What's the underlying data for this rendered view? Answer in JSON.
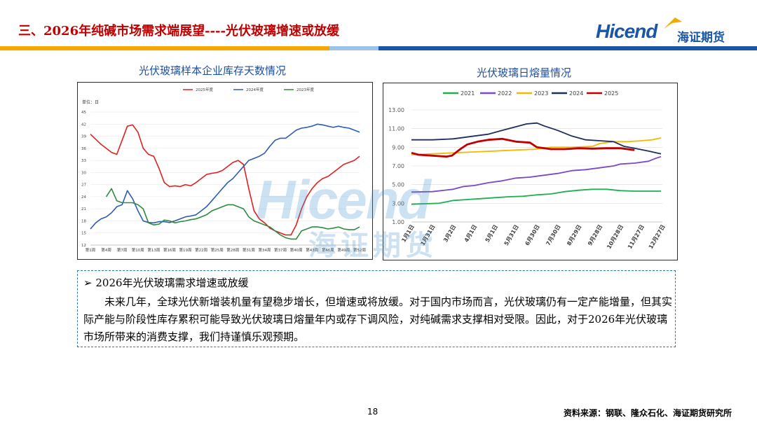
{
  "header": {
    "title": "三、2026年纯碱市场需求端展望----光伏玻璃增速或放缓",
    "logo_en": "Hicend",
    "logo_cn": "海证期货"
  },
  "left_chart_title": "光伏玻璃样本企业库存天数情况",
  "right_chart_title": "光伏玻璃日熔量情况",
  "watermark": {
    "en": "Hicend",
    "cn": "海证期货"
  },
  "chart_data": [
    {
      "type": "line",
      "unit_label": "单位：日",
      "ylim": [
        12,
        45
      ],
      "yticks": [
        12,
        15,
        18,
        21,
        24,
        27,
        30,
        33,
        36,
        39,
        42,
        45
      ],
      "x_weeks": [
        1,
        52
      ],
      "xtick_labels": [
        "第1周",
        "第4周",
        "第7周",
        "第10周",
        "第13周",
        "第16周",
        "第19周",
        "第22周",
        "第25周",
        "第28周",
        "第31周",
        "第34周",
        "第37周",
        "第40周",
        "第43周",
        "第46周",
        "第49周",
        "第52周"
      ],
      "legend_position": "top",
      "series": [
        {
          "name": "2025年度",
          "color": "#e02020",
          "values": [
            [
              1,
              39.5
            ],
            [
              3,
              37
            ],
            [
              5,
              35
            ],
            [
              6,
              34.5
            ],
            [
              7,
              38
            ],
            [
              8,
              41.5
            ],
            [
              9,
              41.8
            ],
            [
              10,
              40
            ],
            [
              11,
              36
            ],
            [
              12,
              34.5
            ],
            [
              13,
              34
            ],
            [
              14,
              31
            ],
            [
              15,
              27.5
            ],
            [
              16,
              26.5
            ],
            [
              17,
              26.7
            ],
            [
              18,
              26.5
            ],
            [
              19,
              27
            ],
            [
              20,
              26.7
            ],
            [
              21,
              27.5
            ],
            [
              22,
              28.5
            ],
            [
              23,
              29.5
            ],
            [
              24,
              29.8
            ],
            [
              25,
              30
            ],
            [
              26,
              30.5
            ],
            [
              27,
              31.5
            ],
            [
              28,
              32.5
            ],
            [
              29,
              33
            ],
            [
              30,
              32
            ],
            [
              31,
              26
            ],
            [
              32,
              20.5
            ],
            [
              33,
              18.5
            ],
            [
              34,
              17.5
            ],
            [
              35,
              16.2
            ],
            [
              36,
              15.5
            ],
            [
              37,
              15
            ],
            [
              38,
              14.5
            ],
            [
              39,
              14.5
            ],
            [
              40,
              17
            ],
            [
              41,
              21
            ],
            [
              42,
              24
            ],
            [
              43,
              26
            ],
            [
              44,
              27.5
            ],
            [
              45,
              28.5
            ],
            [
              46,
              29
            ],
            [
              47,
              30
            ],
            [
              48,
              31
            ],
            [
              49,
              32
            ],
            [
              50,
              32.5
            ],
            [
              51,
              33
            ],
            [
              52,
              34
            ]
          ]
        },
        {
          "name": "2024年度",
          "color": "#2e5bb6",
          "values": [
            [
              1,
              16
            ],
            [
              2,
              17.5
            ],
            [
              3,
              18.5
            ],
            [
              4,
              19
            ],
            [
              5,
              20
            ],
            [
              6,
              21.5
            ],
            [
              7,
              22
            ],
            [
              8,
              25.5
            ],
            [
              9,
              23.5
            ],
            [
              10,
              20.5
            ],
            [
              11,
              18
            ],
            [
              12,
              17.6
            ],
            [
              13,
              17.5
            ],
            [
              14,
              17.8
            ],
            [
              15,
              17.8
            ],
            [
              16,
              17.6
            ],
            [
              17,
              18
            ],
            [
              18,
              18.5
            ],
            [
              19,
              19
            ],
            [
              20,
              19.2
            ],
            [
              21,
              19.5
            ],
            [
              22,
              20.5
            ],
            [
              23,
              21.5
            ],
            [
              24,
              23
            ],
            [
              25,
              24.5
            ],
            [
              26,
              26
            ],
            [
              27,
              27.5
            ],
            [
              28,
              28.5
            ],
            [
              29,
              30
            ],
            [
              30,
              31.5
            ],
            [
              31,
              33
            ],
            [
              32,
              33.5
            ],
            [
              33,
              34
            ],
            [
              34,
              34.8
            ],
            [
              35,
              36.5
            ],
            [
              36,
              38
            ],
            [
              37,
              38.5
            ],
            [
              38,
              38.5
            ],
            [
              39,
              39.5
            ],
            [
              40,
              40.5
            ],
            [
              41,
              41
            ],
            [
              42,
              41.2
            ],
            [
              43,
              41.5
            ],
            [
              44,
              42
            ],
            [
              45,
              41.8
            ],
            [
              46,
              41.5
            ],
            [
              47,
              41.2
            ],
            [
              48,
              41.5
            ],
            [
              49,
              41.2
            ],
            [
              50,
              41
            ],
            [
              51,
              40.5
            ],
            [
              52,
              40
            ]
          ]
        },
        {
          "name": "2023年度",
          "color": "#2e8b3e",
          "values": [
            [
              4,
              24
            ],
            [
              5,
              26
            ],
            [
              6,
              23
            ],
            [
              7,
              22.5
            ],
            [
              8,
              22.5
            ],
            [
              9,
              22.5
            ],
            [
              10,
              22
            ],
            [
              11,
              21
            ],
            [
              12,
              17.5
            ],
            [
              13,
              17
            ],
            [
              14,
              17.2
            ],
            [
              15,
              18.2
            ],
            [
              16,
              18
            ],
            [
              17,
              17.5
            ],
            [
              18,
              17.8
            ],
            [
              19,
              18
            ],
            [
              20,
              18.3
            ],
            [
              21,
              18.5
            ],
            [
              22,
              19
            ],
            [
              23,
              19.5
            ],
            [
              24,
              20.5
            ],
            [
              25,
              21
            ],
            [
              26,
              21.5
            ],
            [
              27,
              22
            ],
            [
              28,
              22
            ],
            [
              29,
              21.5
            ],
            [
              30,
              21
            ],
            [
              31,
              19
            ],
            [
              32,
              18
            ],
            [
              33,
              17.5
            ],
            [
              34,
              17
            ],
            [
              35,
              16.5
            ],
            [
              36,
              15.5
            ],
            [
              37,
              14.5
            ],
            [
              38,
              13.8
            ],
            [
              39,
              13.5
            ],
            [
              40,
              13.5
            ],
            [
              41,
              15.5
            ],
            [
              42,
              16
            ],
            [
              43,
              16.5
            ],
            [
              44,
              16.5
            ],
            [
              45,
              16.3
            ],
            [
              46,
              16
            ],
            [
              47,
              16.2
            ],
            [
              48,
              16.5
            ],
            [
              49,
              16
            ],
            [
              50,
              15.8
            ],
            [
              51,
              15.8
            ],
            [
              52,
              16.5
            ]
          ]
        }
      ]
    },
    {
      "type": "line",
      "ylim": [
        1.0,
        13.0
      ],
      "yticks": [
        "1.00",
        "3.00",
        "5.00",
        "7.00",
        "9.00",
        "11.00",
        "13.00"
      ],
      "xtick_labels": [
        "1月1日",
        "1月31日",
        "3月2日",
        "4月1日",
        "5月1日",
        "5月31日",
        "6月30日",
        "7月30日",
        "8月29日",
        "9月28日",
        "10月28日",
        "11月27日",
        "12月27日"
      ],
      "legend_position": "top",
      "series": [
        {
          "name": "2021",
          "color": "#1eb050",
          "values": [
            [
              0,
              2.9
            ],
            [
              20,
              2.95
            ],
            [
              40,
              3.0
            ],
            [
              60,
              3.3
            ],
            [
              80,
              3.4
            ],
            [
              100,
              3.5
            ],
            [
              120,
              3.6
            ],
            [
              140,
              3.7
            ],
            [
              160,
              3.75
            ],
            [
              180,
              3.9
            ],
            [
              200,
              4.0
            ],
            [
              220,
              4.25
            ],
            [
              240,
              4.4
            ],
            [
              260,
              4.5
            ],
            [
              280,
              4.5
            ],
            [
              300,
              4.35
            ],
            [
              320,
              4.3
            ],
            [
              340,
              4.3
            ],
            [
              358,
              4.3
            ]
          ]
        },
        {
          "name": "2022",
          "color": "#7a48c8",
          "values": [
            [
              0,
              4.2
            ],
            [
              30,
              4.25
            ],
            [
              60,
              4.5
            ],
            [
              75,
              4.8
            ],
            [
              90,
              4.9
            ],
            [
              110,
              5.2
            ],
            [
              130,
              5.4
            ],
            [
              150,
              5.7
            ],
            [
              170,
              5.8
            ],
            [
              190,
              6.0
            ],
            [
              210,
              6.2
            ],
            [
              230,
              6.5
            ],
            [
              250,
              6.6
            ],
            [
              270,
              6.8
            ],
            [
              290,
              7.0
            ],
            [
              300,
              7.2
            ],
            [
              320,
              7.3
            ],
            [
              340,
              7.5
            ],
            [
              350,
              7.8
            ],
            [
              358,
              8.0
            ]
          ]
        },
        {
          "name": "2023",
          "color": "#f5b800",
          "values": [
            [
              0,
              8.2
            ],
            [
              30,
              8.3
            ],
            [
              60,
              8.4
            ],
            [
              90,
              8.5
            ],
            [
              120,
              8.6
            ],
            [
              150,
              8.7
            ],
            [
              180,
              8.8
            ],
            [
              200,
              9.0
            ],
            [
              230,
              9.0
            ],
            [
              260,
              9.1
            ],
            [
              270,
              9.4
            ],
            [
              290,
              9.6
            ],
            [
              310,
              9.6
            ],
            [
              330,
              9.7
            ],
            [
              345,
              9.8
            ],
            [
              358,
              10.0
            ]
          ]
        },
        {
          "name": "2024",
          "color": "#1f2e5c",
          "values": [
            [
              0,
              9.8
            ],
            [
              30,
              9.8
            ],
            [
              60,
              9.9
            ],
            [
              90,
              10.2
            ],
            [
              110,
              10.4
            ],
            [
              130,
              10.8
            ],
            [
              150,
              11.2
            ],
            [
              165,
              11.5
            ],
            [
              180,
              11.6
            ],
            [
              190,
              11.3
            ],
            [
              210,
              10.8
            ],
            [
              230,
              10.2
            ],
            [
              250,
              9.8
            ],
            [
              270,
              9.7
            ],
            [
              290,
              9.6
            ],
            [
              305,
              9.1
            ],
            [
              320,
              8.9
            ],
            [
              340,
              8.6
            ],
            [
              358,
              8.3
            ]
          ]
        },
        {
          "name": "2025",
          "color": "#c00000",
          "values": [
            [
              0,
              8.4
            ],
            [
              10,
              8.2
            ],
            [
              30,
              8.1
            ],
            [
              50,
              8.0
            ],
            [
              58,
              8.1
            ],
            [
              70,
              8.8
            ],
            [
              80,
              9.3
            ],
            [
              95,
              9.6
            ],
            [
              110,
              9.8
            ],
            [
              130,
              9.9
            ],
            [
              150,
              9.6
            ],
            [
              170,
              9.5
            ],
            [
              180,
              9.0
            ],
            [
              200,
              8.8
            ],
            [
              220,
              8.8
            ],
            [
              240,
              8.9
            ],
            [
              260,
              8.85
            ],
            [
              280,
              8.9
            ],
            [
              300,
              8.9
            ],
            [
              320,
              8.7
            ]
          ]
        }
      ]
    }
  ],
  "note": {
    "heading": "2026年光伏玻璃需求增速或放缓",
    "body": "未来几年，全球光伏新增装机量有望稳步增长，但增速或将放缓。对于国内市场而言，光伏玻璃仍有一定产能增量，但其实际产能与阶段性库存累积可能导致光伏玻璃日熔量年内或存下调风险，对纯碱需求支撑相对受限。因此，对于2026年光伏玻璃市场所带来的消费支撑，我们持谨慎乐观预期。"
  },
  "footer": {
    "page_number": "18",
    "source": "资料来源：钢联、隆众石化、海证期货研究所"
  },
  "colors": {
    "title": "#c00000",
    "brand_blue": "#1a56a8",
    "stripe_orange": "#f5a800",
    "stripe_blue": "#1a56a8",
    "stripe_light": "#9dc3e6",
    "note_border": "#2e75b6"
  }
}
